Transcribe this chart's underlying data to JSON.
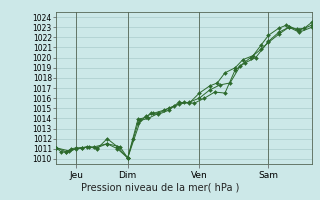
{
  "title": "Pression niveau de la mer( hPa )",
  "bg_color": "#cce8e8",
  "grid_color": "#aacccc",
  "line_color": "#2d6a2d",
  "ylim": [
    1009.5,
    1024.5
  ],
  "yticks": [
    1010,
    1011,
    1012,
    1013,
    1014,
    1015,
    1016,
    1017,
    1018,
    1019,
    1020,
    1021,
    1022,
    1023,
    1024
  ],
  "xtick_positions": [
    0.08,
    0.28,
    0.56,
    0.83
  ],
  "xtick_labels": [
    "Jeu",
    "Dim",
    "Ven",
    "Sam"
  ],
  "series1": [
    [
      0.0,
      1011.1
    ],
    [
      0.02,
      1010.7
    ],
    [
      0.04,
      1010.7
    ],
    [
      0.06,
      1011.0
    ],
    [
      0.08,
      1011.1
    ],
    [
      0.1,
      1011.1
    ],
    [
      0.13,
      1011.2
    ],
    [
      0.16,
      1011.0
    ],
    [
      0.2,
      1012.0
    ],
    [
      0.24,
      1011.2
    ],
    [
      0.28,
      1010.1
    ],
    [
      0.3,
      1012.0
    ],
    [
      0.32,
      1013.9
    ],
    [
      0.35,
      1014.1
    ],
    [
      0.37,
      1014.5
    ],
    [
      0.4,
      1014.4
    ],
    [
      0.44,
      1014.8
    ],
    [
      0.48,
      1015.6
    ],
    [
      0.52,
      1015.5
    ],
    [
      0.56,
      1016.5
    ],
    [
      0.6,
      1017.2
    ],
    [
      0.63,
      1017.5
    ],
    [
      0.66,
      1018.5
    ],
    [
      0.7,
      1019.0
    ],
    [
      0.73,
      1019.8
    ],
    [
      0.77,
      1020.2
    ],
    [
      0.8,
      1021.2
    ],
    [
      0.83,
      1022.2
    ],
    [
      0.87,
      1022.9
    ],
    [
      0.9,
      1023.2
    ],
    [
      0.94,
      1022.8
    ],
    [
      0.97,
      1022.9
    ],
    [
      1.0,
      1023.5
    ]
  ],
  "series2": [
    [
      0.0,
      1011.1
    ],
    [
      0.04,
      1010.7
    ],
    [
      0.08,
      1011.0
    ],
    [
      0.12,
      1011.2
    ],
    [
      0.16,
      1011.1
    ],
    [
      0.2,
      1011.5
    ],
    [
      0.24,
      1011.0
    ],
    [
      0.28,
      1010.1
    ],
    [
      0.32,
      1013.5
    ],
    [
      0.35,
      1014.2
    ],
    [
      0.38,
      1014.5
    ],
    [
      0.42,
      1014.8
    ],
    [
      0.46,
      1015.2
    ],
    [
      0.5,
      1015.6
    ],
    [
      0.54,
      1015.5
    ],
    [
      0.58,
      1016.0
    ],
    [
      0.62,
      1016.6
    ],
    [
      0.66,
      1016.5
    ],
    [
      0.7,
      1018.8
    ],
    [
      0.74,
      1019.5
    ],
    [
      0.78,
      1020.0
    ],
    [
      0.83,
      1021.6
    ],
    [
      0.87,
      1022.5
    ],
    [
      0.91,
      1023.0
    ],
    [
      0.95,
      1022.5
    ],
    [
      1.0,
      1023.0
    ]
  ],
  "series3": [
    [
      0.0,
      1011.1
    ],
    [
      0.05,
      1010.8
    ],
    [
      0.1,
      1011.1
    ],
    [
      0.15,
      1011.2
    ],
    [
      0.2,
      1011.5
    ],
    [
      0.25,
      1011.2
    ],
    [
      0.28,
      1010.1
    ],
    [
      0.33,
      1013.8
    ],
    [
      0.36,
      1014.0
    ],
    [
      0.4,
      1014.5
    ],
    [
      0.44,
      1015.0
    ],
    [
      0.48,
      1015.4
    ],
    [
      0.52,
      1015.6
    ],
    [
      0.56,
      1016.0
    ],
    [
      0.6,
      1016.8
    ],
    [
      0.64,
      1017.3
    ],
    [
      0.68,
      1017.5
    ],
    [
      0.72,
      1019.2
    ],
    [
      0.76,
      1020.0
    ],
    [
      0.8,
      1020.8
    ],
    [
      0.83,
      1021.5
    ],
    [
      0.87,
      1022.3
    ],
    [
      0.91,
      1023.0
    ],
    [
      0.95,
      1022.7
    ],
    [
      1.0,
      1023.2
    ]
  ],
  "figsize": [
    3.2,
    2.0
  ],
  "dpi": 100
}
